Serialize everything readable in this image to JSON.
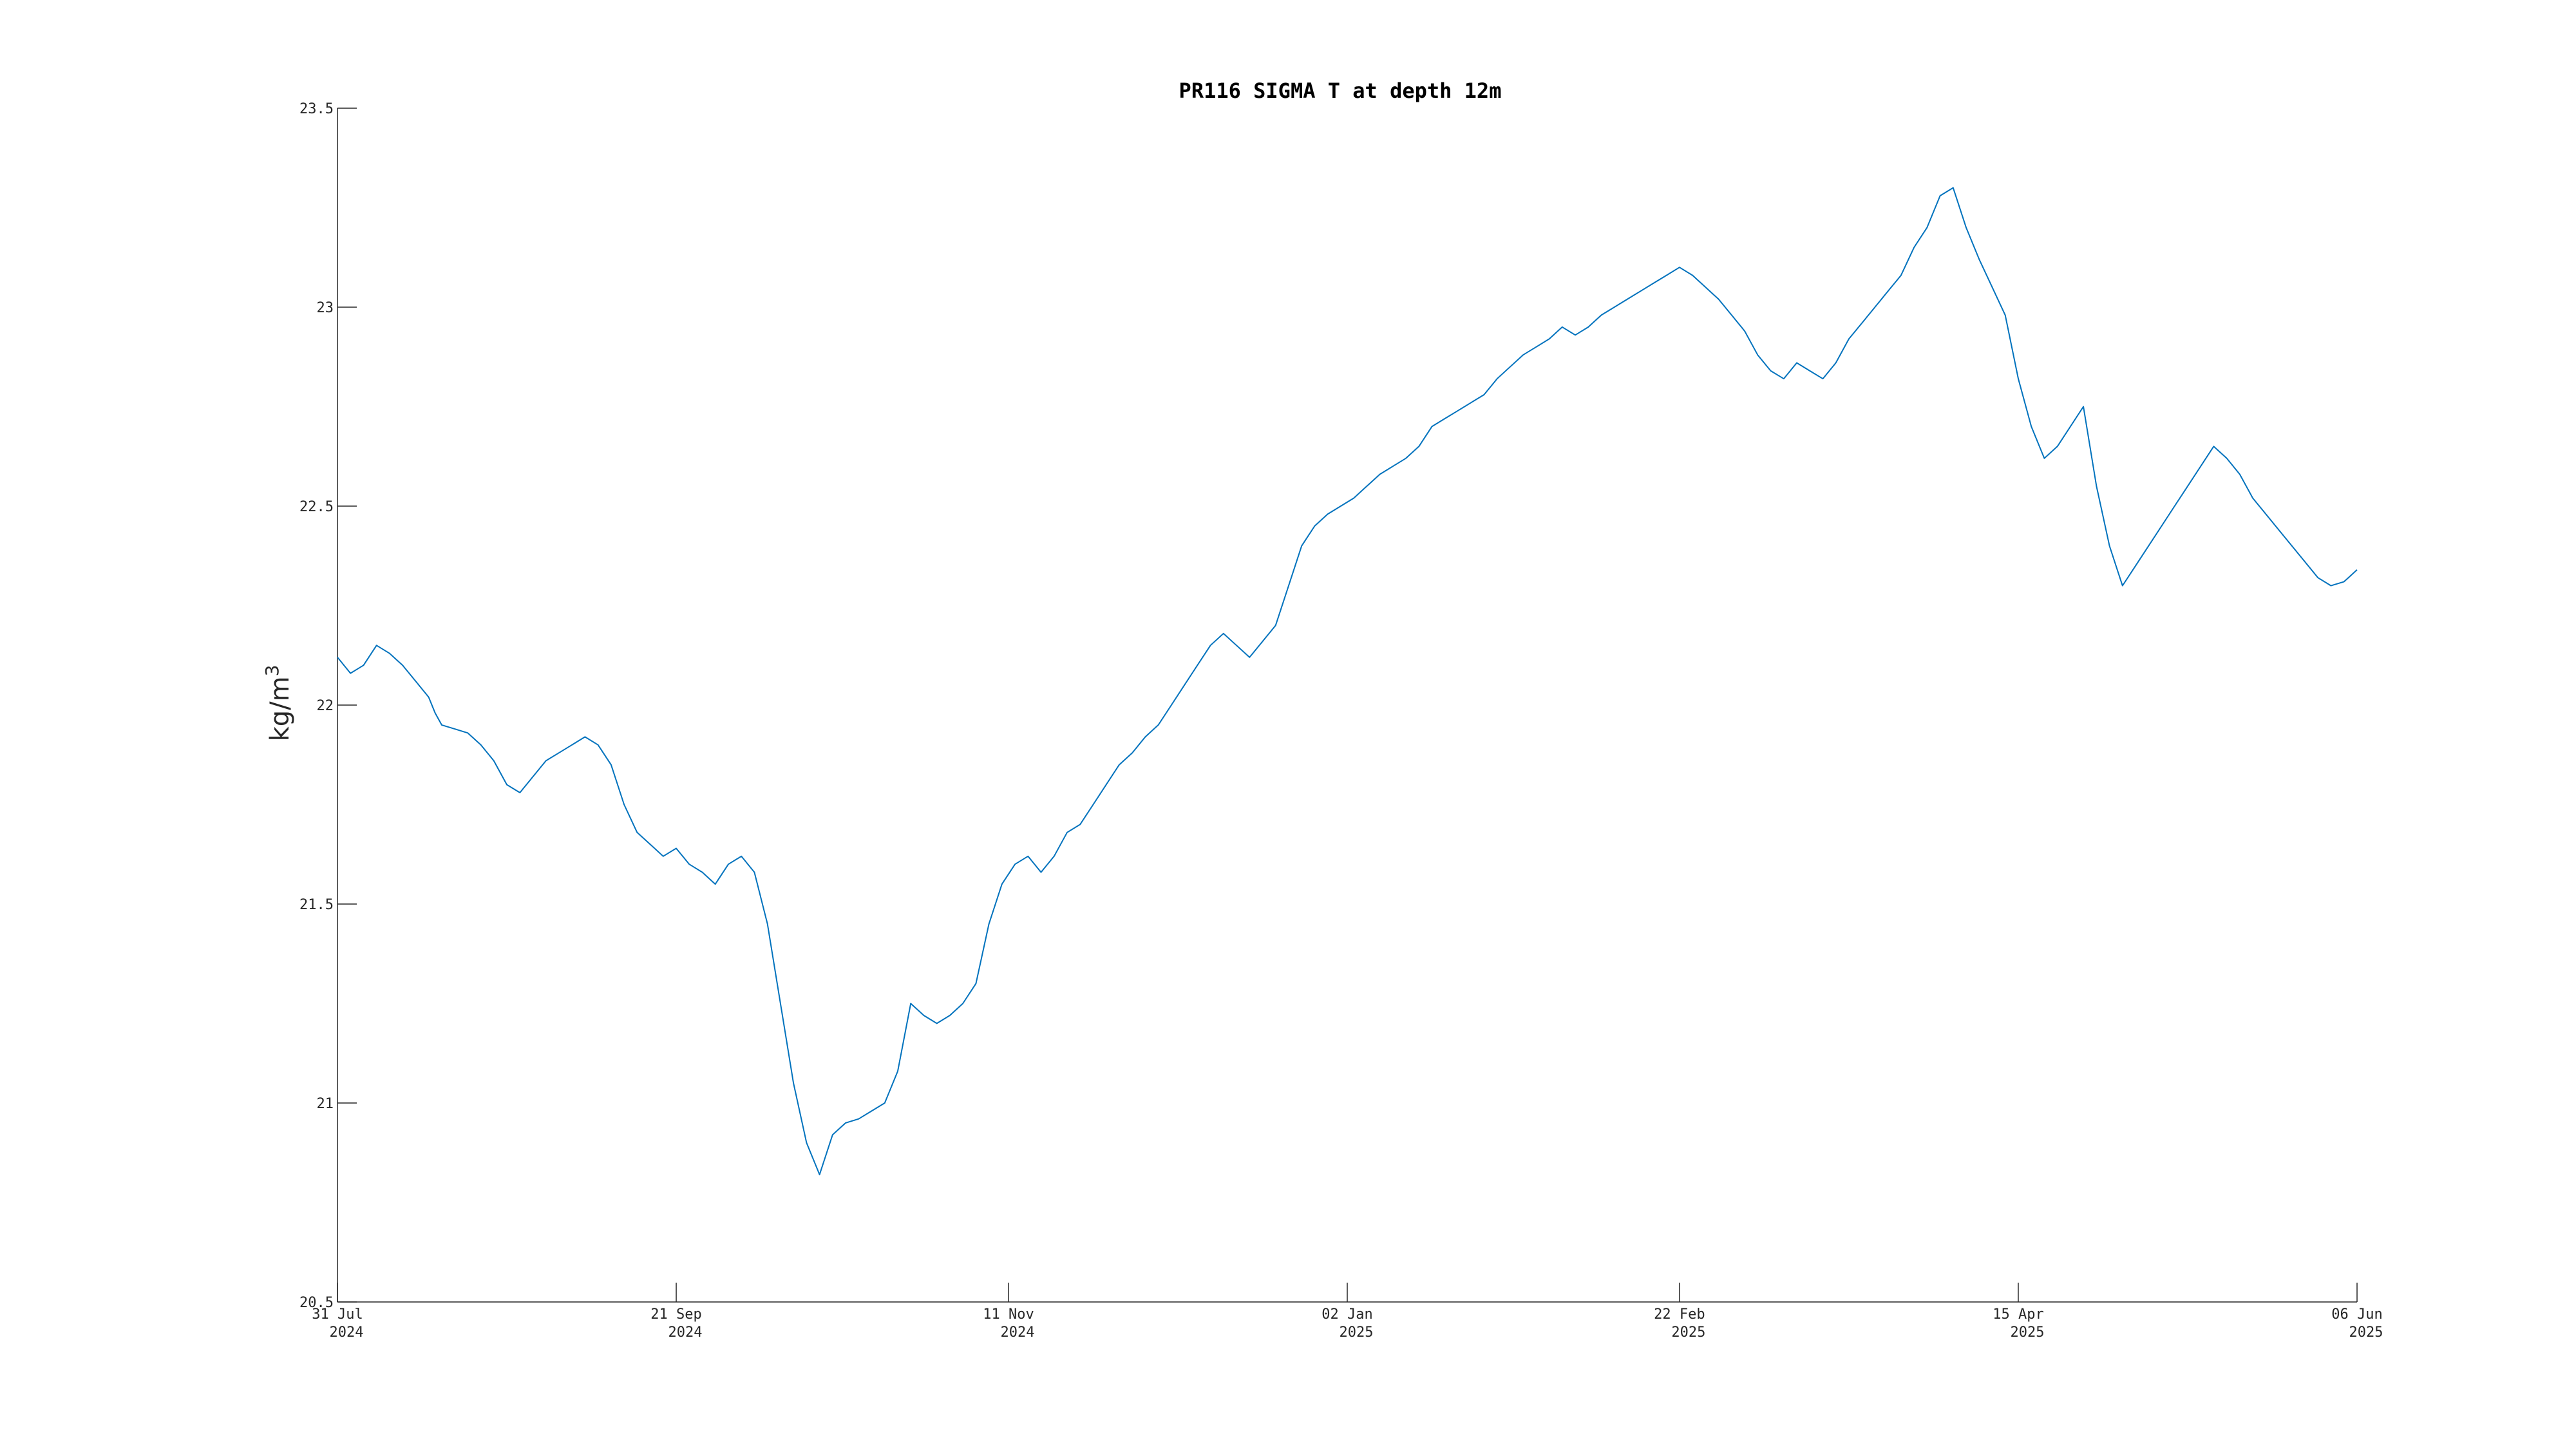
{
  "chart_data": {
    "type": "line",
    "title": "PR116 SIGMA T at depth 12m",
    "xlabel": "",
    "ylabel": "kg/m",
    "ylabel_superscript": "3",
    "ylim": [
      20.5,
      23.5
    ],
    "yticks": [
      20.5,
      21,
      21.5,
      22,
      22.5,
      23,
      23.5
    ],
    "ytick_labels": [
      "20.5",
      "21",
      "21.5",
      "22",
      "22.5",
      "23",
      "23.5"
    ],
    "xlim": [
      "2024-07-31",
      "2025-06-06"
    ],
    "xticks": [
      {
        "date": "2024-07-31",
        "line1": "31 Jul",
        "line2": "2024"
      },
      {
        "date": "2024-09-21",
        "line1": "21 Sep",
        "line2": "2024"
      },
      {
        "date": "2024-11-11",
        "line1": "11 Nov",
        "line2": "2024"
      },
      {
        "date": "2025-01-02",
        "line1": "02 Jan",
        "line2": "2025"
      },
      {
        "date": "2025-02-22",
        "line1": "22 Feb",
        "line2": "2025"
      },
      {
        "date": "2025-04-15",
        "line1": "15 Apr",
        "line2": "2025"
      },
      {
        "date": "2025-06-06",
        "line1": "06 Jun",
        "line2": "2025"
      }
    ],
    "grid": false,
    "line_color": "#0072BD",
    "series": [
      {
        "x": [
          "2024-07-31",
          "2024-08-02",
          "2024-08-04",
          "2024-08-06",
          "2024-08-08",
          "2024-08-10",
          "2024-08-12",
          "2024-08-14",
          "2024-08-15",
          "2024-08-16",
          "2024-08-18",
          "2024-08-20",
          "2024-08-22",
          "2024-08-24",
          "2024-08-26",
          "2024-08-28",
          "2024-08-30",
          "2024-09-01",
          "2024-09-03",
          "2024-09-05",
          "2024-09-07",
          "2024-09-09",
          "2024-09-11",
          "2024-09-13",
          "2024-09-15",
          "2024-09-17",
          "2024-09-19",
          "2024-09-21",
          "2024-09-23",
          "2024-09-25",
          "2024-09-27",
          "2024-09-29",
          "2024-10-01",
          "2024-10-03",
          "2024-10-05",
          "2024-10-07",
          "2024-10-09",
          "2024-10-11",
          "2024-10-13",
          "2024-10-15",
          "2024-10-17",
          "2024-10-19",
          "2024-10-21",
          "2024-10-23",
          "2024-10-25",
          "2024-10-27",
          "2024-10-29",
          "2024-10-31",
          "2024-11-02",
          "2024-11-04",
          "2024-11-06",
          "2024-11-08",
          "2024-11-10",
          "2024-11-12",
          "2024-11-14",
          "2024-11-16",
          "2024-11-18",
          "2024-11-20",
          "2024-11-22",
          "2024-11-24",
          "2024-11-26",
          "2024-11-28",
          "2024-11-30",
          "2024-12-02",
          "2024-12-04",
          "2024-12-06",
          "2024-12-08",
          "2024-12-10",
          "2024-12-12",
          "2024-12-14",
          "2024-12-16",
          "2024-12-18",
          "2024-12-20",
          "2024-12-22",
          "2024-12-24",
          "2024-12-26",
          "2024-12-28",
          "2024-12-30",
          "2025-01-01",
          "2025-01-03",
          "2025-01-05",
          "2025-01-07",
          "2025-01-09",
          "2025-01-11",
          "2025-01-13",
          "2025-01-15",
          "2025-01-17",
          "2025-01-19",
          "2025-01-21",
          "2025-01-23",
          "2025-01-25",
          "2025-01-27",
          "2025-01-29",
          "2025-01-31",
          "2025-02-02",
          "2025-02-04",
          "2025-02-06",
          "2025-02-08",
          "2025-02-10",
          "2025-02-12",
          "2025-02-14",
          "2025-02-16",
          "2025-02-18",
          "2025-02-20",
          "2025-02-22",
          "2025-02-24",
          "2025-02-26",
          "2025-02-28",
          "2025-03-02",
          "2025-03-04",
          "2025-03-06",
          "2025-03-08",
          "2025-03-10",
          "2025-03-12",
          "2025-03-14",
          "2025-03-16",
          "2025-03-18",
          "2025-03-20",
          "2025-03-22",
          "2025-03-24",
          "2025-03-26",
          "2025-03-28",
          "2025-03-30",
          "2025-04-01",
          "2025-04-03",
          "2025-04-05",
          "2025-04-07",
          "2025-04-09",
          "2025-04-11",
          "2025-04-13",
          "2025-04-15",
          "2025-04-17",
          "2025-04-19",
          "2025-04-21",
          "2025-04-23",
          "2025-04-25",
          "2025-04-27",
          "2025-04-29",
          "2025-05-01",
          "2025-05-03",
          "2025-05-05",
          "2025-05-07",
          "2025-05-09",
          "2025-05-11",
          "2025-05-13",
          "2025-05-15",
          "2025-05-17",
          "2025-05-19",
          "2025-05-21",
          "2025-05-23",
          "2025-05-25",
          "2025-05-27",
          "2025-05-29",
          "2025-05-31",
          "2025-06-02",
          "2025-06-04",
          "2025-06-06"
        ],
        "y": [
          22.12,
          22.08,
          22.1,
          22.15,
          22.13,
          22.1,
          22.06,
          22.02,
          21.98,
          21.95,
          21.94,
          21.93,
          21.9,
          21.86,
          21.8,
          21.78,
          21.82,
          21.86,
          21.88,
          21.9,
          21.92,
          21.9,
          21.85,
          21.75,
          21.68,
          21.65,
          21.62,
          21.64,
          21.6,
          21.58,
          21.55,
          21.6,
          21.62,
          21.58,
          21.45,
          21.25,
          21.05,
          20.9,
          20.82,
          20.92,
          20.95,
          20.96,
          20.98,
          21.0,
          21.08,
          21.25,
          21.22,
          21.2,
          21.22,
          21.25,
          21.3,
          21.45,
          21.55,
          21.6,
          21.62,
          21.58,
          21.62,
          21.68,
          21.7,
          21.75,
          21.8,
          21.85,
          21.88,
          21.92,
          21.95,
          22.0,
          22.05,
          22.1,
          22.15,
          22.18,
          22.15,
          22.12,
          22.16,
          22.2,
          22.3,
          22.4,
          22.45,
          22.48,
          22.5,
          22.52,
          22.55,
          22.58,
          22.6,
          22.62,
          22.65,
          22.7,
          22.72,
          22.74,
          22.76,
          22.78,
          22.82,
          22.85,
          22.88,
          22.9,
          22.92,
          22.95,
          22.93,
          22.95,
          22.98,
          23.0,
          23.02,
          23.04,
          23.06,
          23.08,
          23.1,
          23.08,
          23.05,
          23.02,
          22.98,
          22.94,
          22.88,
          22.84,
          22.82,
          22.86,
          22.84,
          22.82,
          22.86,
          22.92,
          22.96,
          23.0,
          23.04,
          23.08,
          23.15,
          23.2,
          23.28,
          23.3,
          23.2,
          23.12,
          23.05,
          22.98,
          22.82,
          22.7,
          22.62,
          22.65,
          22.7,
          22.75,
          22.55,
          22.4,
          22.3,
          22.35,
          22.4,
          22.45,
          22.5,
          22.55,
          22.6,
          22.65,
          22.62,
          22.58,
          22.52,
          22.48,
          22.44,
          22.4,
          22.36,
          22.32,
          22.3,
          22.31,
          22.34
        ]
      }
    ]
  }
}
